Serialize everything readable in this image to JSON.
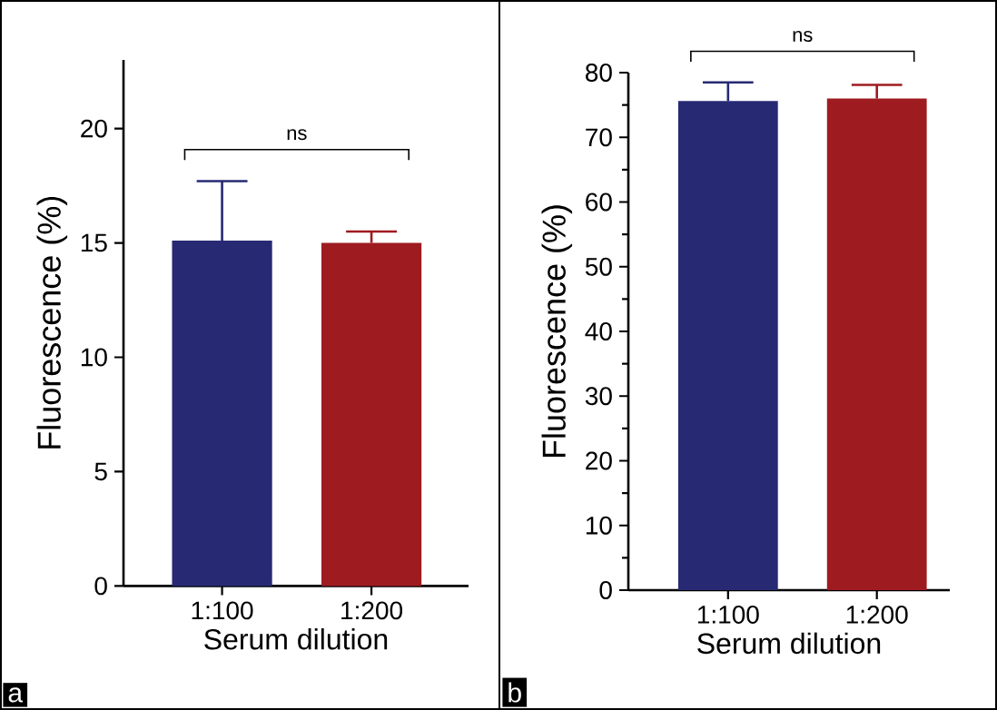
{
  "chart_data": [
    {
      "type": "bar",
      "categories": [
        "1:100",
        "1:200"
      ],
      "values": [
        15.1,
        15.0
      ],
      "colors": [
        "#272a73",
        "#9e1b20"
      ],
      "errors": [
        [
          15.1,
          17.7
        ],
        [
          15.0,
          15.5
        ]
      ],
      "xlabel": "Serum dilution",
      "ylabel": "Fluorescence  (%)",
      "ylim": [
        0,
        23
      ],
      "yticks": [
        0,
        5,
        10,
        15,
        20
      ],
      "annotations": [
        "ns",
        "a"
      ]
    },
    {
      "type": "bar",
      "categories": [
        "1:100",
        "1:200"
      ],
      "values": [
        75.6,
        76.0
      ],
      "colors": [
        "#272a73",
        "#9e1b20"
      ],
      "errors": [
        [
          75.6,
          78.5
        ],
        [
          76.0,
          78.1
        ]
      ],
      "xlabel": "Serum dilution",
      "ylabel": "Fluorescence  (%)",
      "ylim": [
        0,
        80
      ],
      "yticks": [
        0,
        {
          "value": 5,
          "label": null
        },
        10,
        {
          "value": 15,
          "label": null
        },
        20,
        {
          "value": 25,
          "label": null
        },
        30,
        {
          "value": 35,
          "label": null
        },
        40,
        {
          "value": 45,
          "label": null
        },
        50,
        {
          "value": 55,
          "label": null
        },
        60,
        {
          "value": 65,
          "label": null
        },
        70,
        {
          "value": 75,
          "label": null
        },
        80
      ],
      "annotations": [
        "ns",
        "b"
      ]
    }
  ]
}
